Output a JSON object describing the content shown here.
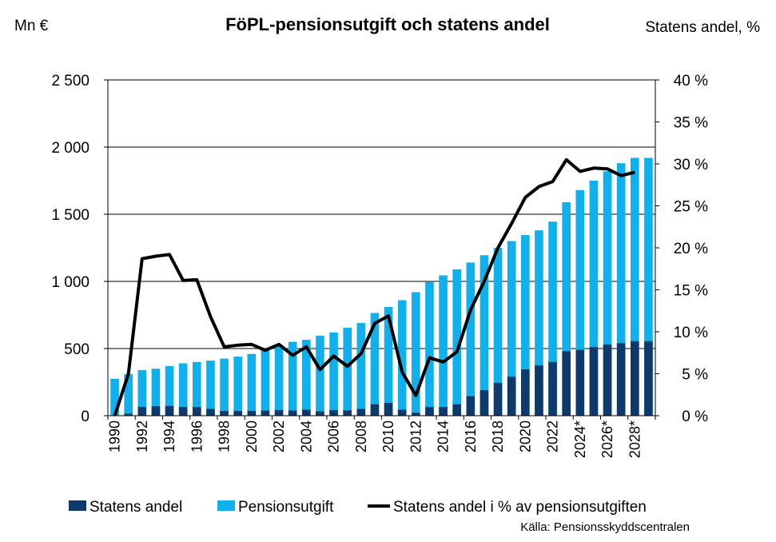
{
  "chart_data": {
    "type": "bar",
    "title": "FöPL-pensionsutgift och statens andel",
    "ylabel_left": "Mn €",
    "ylabel_right": "Statens andel, %",
    "source": "Källa: Pensionsskyddscentralen",
    "ylim_left": [
      0,
      2500
    ],
    "ylim_right": [
      0,
      40
    ],
    "yticks_left": [
      "0",
      "500",
      "1 000",
      "1 500",
      "2 000",
      "2 500"
    ],
    "yticks_right": [
      "0 %",
      "5 %",
      "10 %",
      "15 %",
      "20 %",
      "25 %",
      "30 %",
      "35 %",
      "40 %"
    ],
    "grid": true,
    "legend_position": "bottom",
    "categories": [
      "1990",
      "1991",
      "1992",
      "1993",
      "1994",
      "1995",
      "1996",
      "1997",
      "1998",
      "1999",
      "2000",
      "2001",
      "2002",
      "2003",
      "2004",
      "2005",
      "2006",
      "2007",
      "2008",
      "2009",
      "2010",
      "2011",
      "2012",
      "2013",
      "2014",
      "2015",
      "2016",
      "2017",
      "2018",
      "2019",
      "2020",
      "2021",
      "2022",
      "2023",
      "2024*",
      "2025",
      "2026*",
      "2027",
      "2028*",
      "2029"
    ],
    "x_tick_labels": [
      "1990",
      "1992",
      "1994",
      "1996",
      "1998",
      "2000",
      "2002",
      "2004",
      "2006",
      "2008",
      "2010",
      "2012",
      "2014",
      "2016",
      "2018",
      "2020",
      "2022",
      "2024*",
      "2026*",
      "2028*"
    ],
    "series": [
      {
        "name": "Statens andel",
        "kind": "bar",
        "color": "#0d3a6b",
        "values": [
          2,
          15,
          65,
          70,
          72,
          65,
          65,
          50,
          35,
          35,
          35,
          38,
          42,
          38,
          45,
          32,
          42,
          40,
          50,
          85,
          95,
          45,
          22,
          65,
          65,
          85,
          145,
          190,
          245,
          290,
          345,
          375,
          400,
          480,
          490,
          510,
          530,
          540,
          555,
          555
        ]
      },
      {
        "name": "Pensionsutgift",
        "kind": "bar",
        "color": "#10b0ec",
        "values": [
          275,
          310,
          340,
          350,
          370,
          390,
          400,
          410,
          425,
          440,
          460,
          490,
          520,
          550,
          565,
          595,
          620,
          655,
          690,
          765,
          810,
          860,
          920,
          995,
          1045,
          1090,
          1140,
          1195,
          1250,
          1300,
          1345,
          1380,
          1445,
          1590,
          1680,
          1750,
          1820,
          1880,
          1920,
          1920
        ]
      },
      {
        "name": "Statens andel i % av pensionsutgiften",
        "kind": "line",
        "axis": "right",
        "color": "#000000",
        "values": [
          0,
          5,
          18.7,
          19,
          19.2,
          16.1,
          16.2,
          11.8,
          8.2,
          8.4,
          8.5,
          7.8,
          8.5,
          7.2,
          8.2,
          5.5,
          7.1,
          5.9,
          7.4,
          11,
          11.9,
          5.2,
          2.4,
          6.9,
          6.4,
          7.6,
          12.6,
          16,
          20,
          22.9,
          26,
          27.3,
          27.9,
          30.5,
          29.1,
          29.5,
          29.4,
          28.6,
          29,
          null
        ]
      }
    ]
  }
}
